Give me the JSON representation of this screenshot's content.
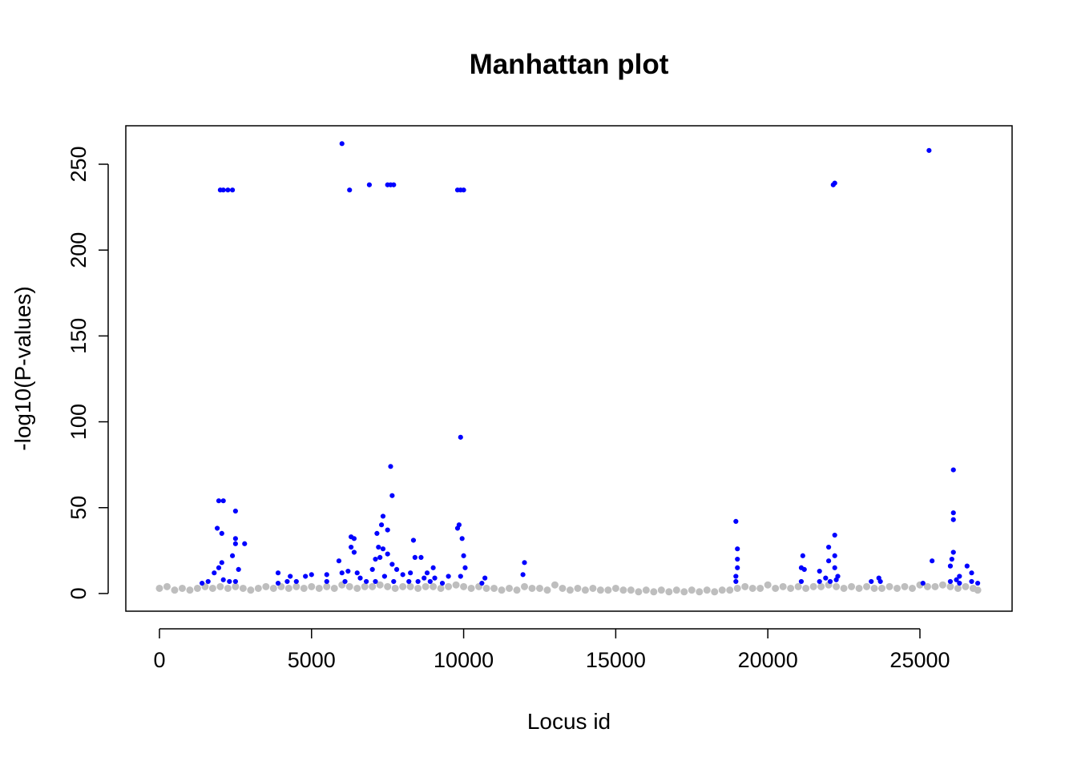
{
  "chart_data": {
    "type": "scatter",
    "title": "Manhattan plot",
    "x_label": "Locus id",
    "y_label": "-log10(P-values)",
    "xlim": [
      -1106,
      28030
    ],
    "ylim": [
      -10.3,
      272.4
    ],
    "xticks": [
      0,
      5000,
      10000,
      15000,
      20000,
      25000
    ],
    "yticks": [
      0,
      50,
      100,
      150,
      200,
      250
    ],
    "series": [
      {
        "color": "#bebebe",
        "x": [
          0,
          250,
          500,
          750,
          1000,
          1250,
          1500,
          1750,
          2000,
          2250,
          2500,
          2750,
          3000,
          3250,
          3500,
          3750,
          4000,
          4250,
          4500,
          4750,
          5000,
          5250,
          5500,
          5750,
          6000,
          6250,
          6500,
          6750,
          7000,
          7250,
          7500,
          7750,
          8000,
          8250,
          8500,
          8750,
          9000,
          9250,
          9500,
          9750,
          10000,
          10250,
          10500,
          10750,
          11000,
          11250,
          11500,
          11750,
          12000,
          12250,
          12500,
          12750,
          13000,
          13250,
          13500,
          13750,
          14000,
          14250,
          14500,
          14750,
          15000,
          15250,
          15500,
          15750,
          16000,
          16250,
          16500,
          16750,
          17000,
          17250,
          17500,
          17750,
          18000,
          18250,
          18500,
          18750,
          19000,
          19250,
          19500,
          19750,
          20000,
          20250,
          20500,
          20750,
          21000,
          21250,
          21500,
          21750,
          22000,
          22250,
          22500,
          22750,
          23000,
          23250,
          23500,
          23750,
          24000,
          24250,
          24500,
          24750,
          25000,
          25250,
          25500,
          25750,
          26000,
          26250,
          26500,
          26750,
          26900
        ],
        "values": [
          3,
          4,
          2,
          3,
          2,
          3,
          4,
          3,
          4,
          3,
          4,
          3,
          2,
          3,
          4,
          3,
          4,
          3,
          4,
          3,
          4,
          3,
          4,
          3,
          5,
          4,
          3,
          4,
          4,
          5,
          4,
          3,
          4,
          4,
          3,
          4,
          4,
          3,
          4,
          5,
          4,
          3,
          4,
          3,
          3,
          2,
          3,
          2,
          4,
          3,
          3,
          2,
          5,
          3,
          2,
          3,
          2,
          3,
          2,
          2,
          3,
          2,
          2,
          1,
          2,
          1,
          2,
          1,
          2,
          1,
          2,
          1,
          2,
          1,
          2,
          2,
          3,
          4,
          3,
          3,
          5,
          3,
          4,
          3,
          4,
          3,
          4,
          4,
          5,
          4,
          3,
          4,
          3,
          4,
          3,
          3,
          4,
          3,
          4,
          3,
          5,
          4,
          4,
          5,
          4,
          3,
          4,
          3,
          2
        ]
      },
      {
        "color": "#0000ff",
        "x": [
          2000,
          2100,
          2250,
          2400,
          6000,
          6250,
          6900,
          7500,
          7600,
          7700,
          9800,
          9900,
          10000,
          22150,
          22200,
          25300,
          9900,
          7600,
          26100,
          7650,
          1950,
          2100,
          2500,
          7350,
          26100,
          26100,
          18950,
          9850,
          9800,
          7300,
          7500,
          1900,
          2050,
          7150,
          6300,
          6400,
          9950,
          2500,
          22200,
          8350,
          2800,
          2500,
          6300,
          7200,
          7350,
          19000,
          22000,
          26100,
          7500,
          6400,
          10000,
          2400,
          22200,
          21150,
          8400,
          8600,
          26050,
          5900,
          19000,
          7100,
          7250,
          25400,
          12000,
          2050,
          22000,
          1950,
          7650,
          7800,
          8250,
          26000,
          26550,
          21100,
          22200,
          10050,
          19000,
          9000,
          2600,
          6200,
          6500,
          7000,
          8800,
          21200,
          21700,
          1800,
          3900,
          4300,
          4800,
          5000,
          5500,
          6000,
          7400,
          8000,
          9500,
          9900,
          11950,
          10700,
          18950,
          23650,
          22300,
          26700,
          26300,
          1400,
          1600,
          2100,
          2300,
          2500,
          3900,
          4200,
          4500,
          6100,
          6800,
          7100,
          7700,
          8200,
          8500,
          8900,
          9300,
          10600,
          18950,
          21100,
          21700,
          22050,
          23400,
          23700,
          25100,
          26000,
          26300,
          26700,
          26900,
          5500,
          8700,
          9050,
          6600,
          21900,
          22250,
          26200
        ],
        "values": [
          235,
          235,
          235,
          235,
          262,
          235,
          238,
          238,
          238,
          238,
          235,
          235,
          235,
          238,
          239,
          258,
          91,
          74,
          72,
          57,
          54,
          54,
          48,
          45,
          47,
          43,
          42,
          40,
          38,
          40,
          37,
          38,
          35,
          35,
          33,
          32,
          32,
          32,
          34,
          31,
          29,
          29,
          27,
          27,
          26,
          26,
          27,
          24,
          23,
          24,
          22,
          22,
          22,
          22,
          21,
          21,
          20,
          19,
          20,
          20,
          21,
          19,
          18,
          18,
          19,
          15,
          17,
          14,
          12,
          16,
          16,
          15,
          15,
          15,
          15,
          15,
          14,
          13,
          12,
          14,
          12,
          14,
          13,
          12,
          12,
          10,
          10,
          11,
          11,
          12,
          10,
          11,
          10,
          10,
          11,
          9,
          10,
          9,
          10,
          12,
          10,
          6,
          7,
          8,
          7,
          7,
          6,
          7,
          7,
          7,
          7,
          7,
          7,
          7,
          7,
          7,
          6,
          6,
          7,
          7,
          7,
          7,
          7,
          7,
          6,
          7,
          6,
          7,
          6,
          7,
          9,
          9,
          9,
          9,
          8,
          8
        ]
      }
    ]
  }
}
